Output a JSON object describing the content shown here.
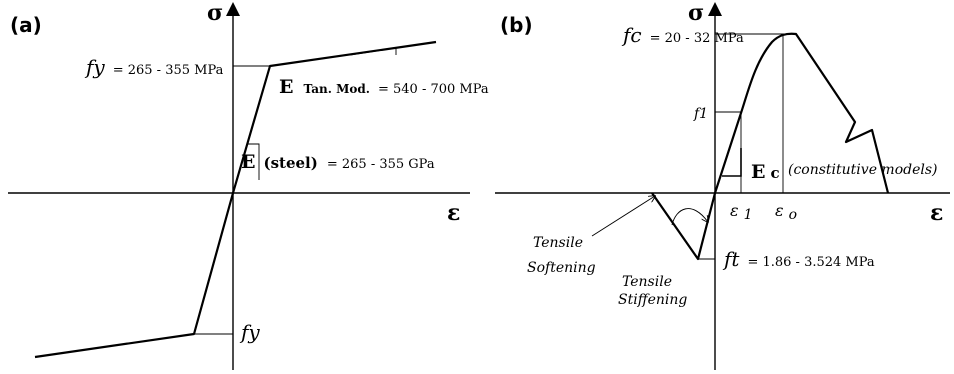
{
  "panel_a": {
    "label": "(a)",
    "sigma": "σ",
    "epsilon": "ε",
    "fy_top_symbol": "fy",
    "fy_top_value": "= 265 - 355 MPa",
    "tan_mod_E": "E",
    "tan_mod_sub": "Tan. Mod.",
    "tan_mod_value": "= 540 - 700 MPa",
    "steel_E": "E",
    "steel_sub": "(steel)",
    "steel_value": "= 265 - 355 GPa",
    "fy_bottom_symbol": "fy"
  },
  "panel_b": {
    "label": "(b)",
    "sigma": "σ",
    "epsilon": "ε",
    "fc_symbol": "fc",
    "fc_value": "= 20 - 32 MPa",
    "f1": "f1",
    "ec_E": "E",
    "ec_sub": "c",
    "constitutive": "(constitutive models)",
    "eps1_symbol": "ε",
    "eps1_sub": "1",
    "epso_symbol": "ε",
    "epso_sub": "o",
    "ft_symbol": "ft",
    "ft_value": "= 1.86 - 3.524 MPa",
    "tensile_softening_1": "Tensile",
    "tensile_softening_2": "Softening",
    "tensile_stiffening_1": "Tensile",
    "tensile_stiffening_2": "Stiffening"
  }
}
